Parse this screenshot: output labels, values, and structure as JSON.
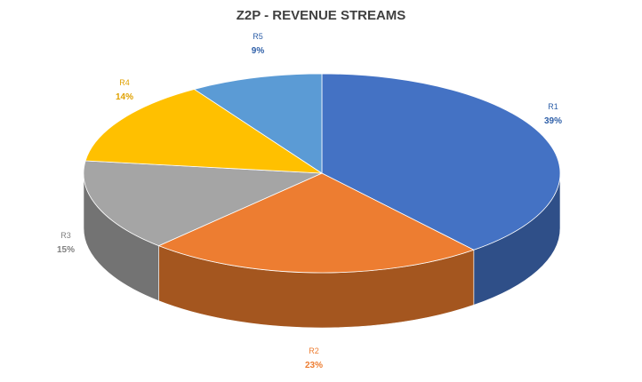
{
  "chart_data": {
    "type": "pie",
    "title": "Z2P - REVENUE STREAMS",
    "style": "3d",
    "categories": [
      "R1",
      "R2",
      "R3",
      "R4",
      "R5"
    ],
    "values": [
      39,
      23,
      15,
      14,
      9
    ],
    "value_labels": [
      "39%",
      "23%",
      "15%",
      "14%",
      "9%"
    ],
    "colors": [
      "#4472C4",
      "#ED7D31",
      "#A5A5A5",
      "#FFC000",
      "#5B9BD5"
    ],
    "side_colors": [
      "#2F4F88",
      "#A4561F",
      "#737373",
      "#B58900",
      "#3F6D96"
    ],
    "label_colors": [
      "#2E5FA8",
      "#ED7D31",
      "#808080",
      "#E0A100",
      "#2E5FA8"
    ]
  }
}
